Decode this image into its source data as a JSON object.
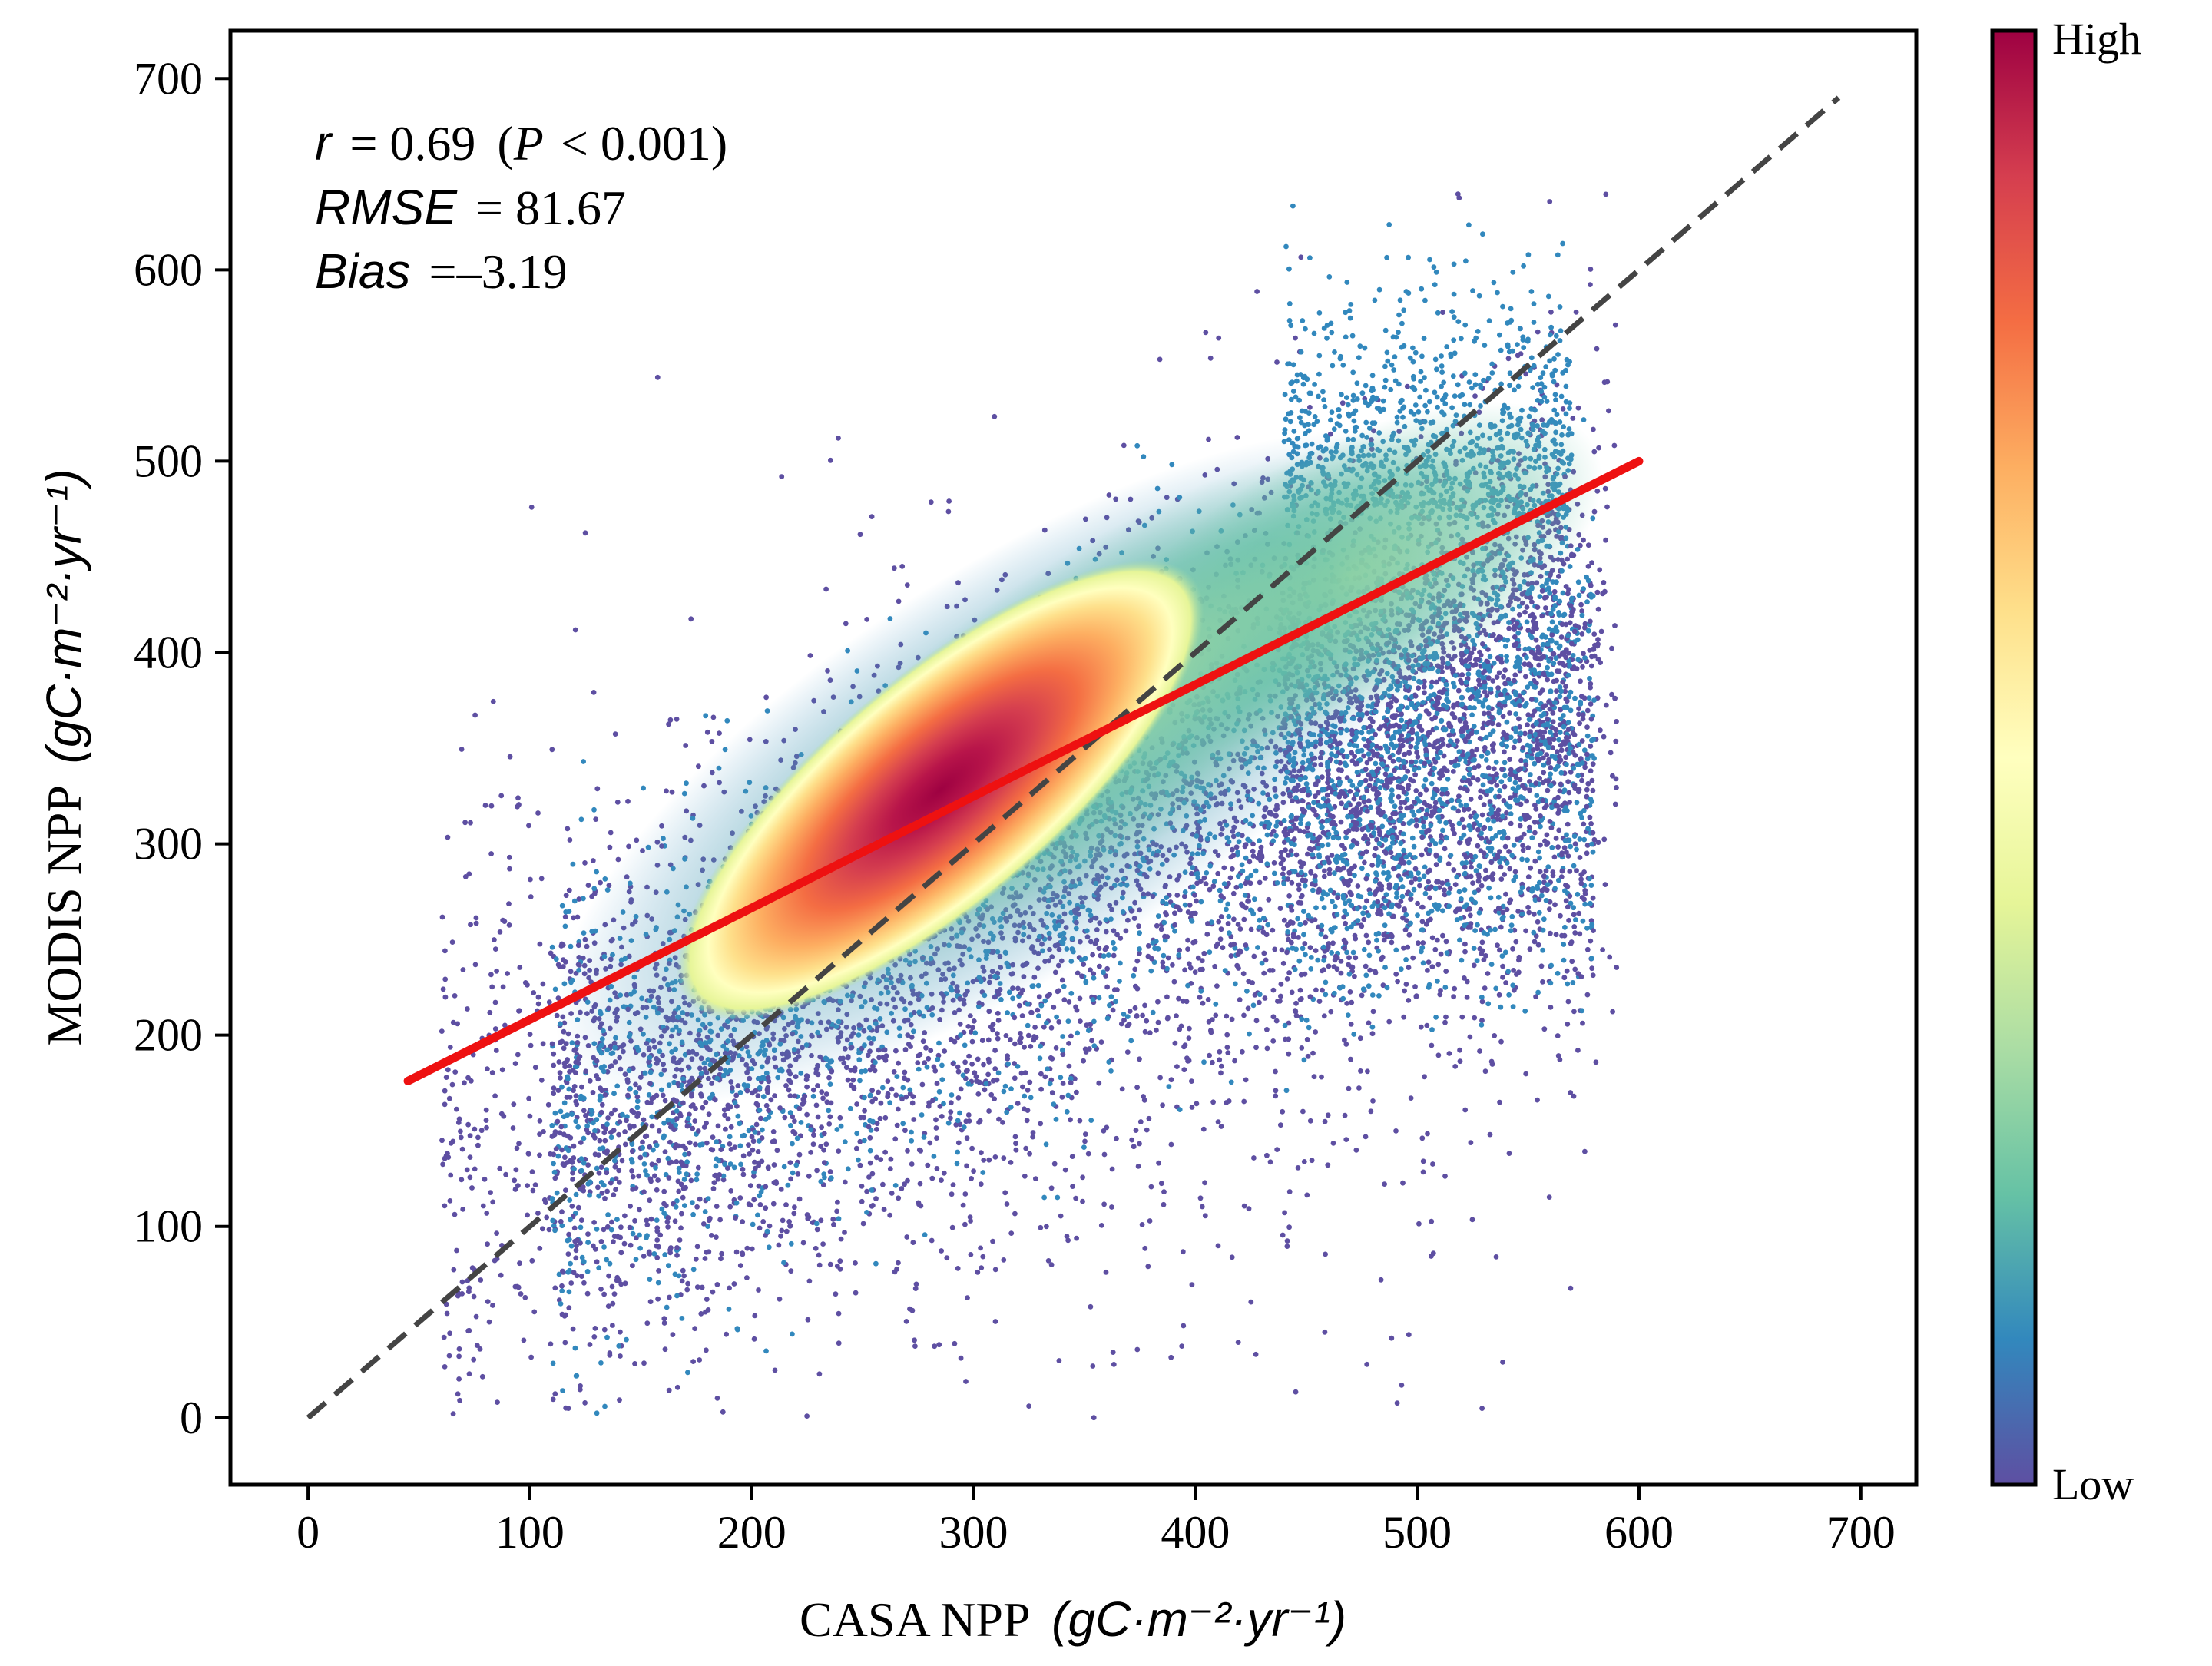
{
  "chart_data": {
    "type": "scatter",
    "subtype": "density-colored scatter with 1:1 line and linear fit",
    "xlabel": {
      "text": "CASA NPP",
      "units": "(gC·m⁻²·yr⁻¹)"
    },
    "ylabel": {
      "text": "MODIS NPP",
      "units": "(gC·m⁻²·yr⁻¹)"
    },
    "xlim": [
      -35,
      725
    ],
    "ylim": [
      -35,
      725
    ],
    "xticks": [
      0,
      100,
      200,
      300,
      400,
      500,
      600,
      700
    ],
    "yticks": [
      0,
      100,
      200,
      300,
      400,
      500,
      600,
      700
    ],
    "stats": {
      "r_label": "r",
      "r_value": "= 0.69",
      "p_open": "(",
      "p_label": "P",
      "p_value": "< 0.001)",
      "rmse_label": "RMSE",
      "rmse_value": "= 81.67",
      "bias_label": "Bias",
      "bias_value": "=–3.19"
    },
    "one_to_one_line": {
      "x": [
        0,
        690
      ],
      "y": [
        0,
        690
      ],
      "color": "#444444",
      "style": "dashed"
    },
    "fit_line": {
      "x": [
        45,
        600
      ],
      "y": [
        176,
        500
      ],
      "color": "#ee1111"
    },
    "density_core": {
      "center": [
        285,
        328
      ],
      "description": "highest point density near (285, 328)"
    },
    "colorbar": {
      "label_high": "High",
      "label_low": "Low",
      "colormap": "Spectral_r",
      "stops": [
        "#5e4fa2",
        "#3288bd",
        "#66c2a5",
        "#abdda4",
        "#e6f598",
        "#ffffbf",
        "#fee08b",
        "#fdae61",
        "#f46d43",
        "#d53e4f",
        "#9e0142"
      ]
    },
    "colors": {
      "sparse": "#5e4fa2",
      "blue": "#3288bd",
      "teal": "#66c2a5",
      "green": "#abdda4",
      "light_yellow": "#ffffbf",
      "orange": "#fdae61",
      "red": "#f46d43",
      "crimson": "#9e0142",
      "fit": "#ee1111",
      "diagonal": "#444444"
    }
  }
}
